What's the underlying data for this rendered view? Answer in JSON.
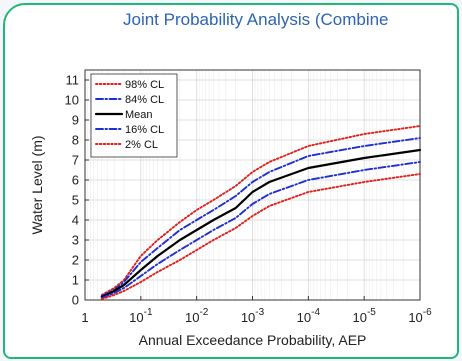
{
  "chart_data": {
    "type": "line",
    "title": "Joint Probability Analysis (Combine",
    "xlabel": "Annual Exceedance Probability, AEP",
    "ylabel": "Water Level (m)",
    "x_scale": "log",
    "x_reversed": true,
    "xlim": [
      1,
      1e-06
    ],
    "ylim": [
      0,
      11.5
    ],
    "x_ticks": [
      {
        "base": "1",
        "exp": ""
      },
      {
        "base": "10",
        "exp": "-1"
      },
      {
        "base": "10",
        "exp": "-2"
      },
      {
        "base": "10",
        "exp": "-3"
      },
      {
        "base": "10",
        "exp": "-4"
      },
      {
        "base": "10",
        "exp": "-5"
      },
      {
        "base": "10",
        "exp": "-6"
      }
    ],
    "y_ticks": [
      "0",
      "1",
      "2",
      "3",
      "4",
      "5",
      "6",
      "7",
      "8",
      "9",
      "10",
      "11"
    ],
    "grid": true,
    "legend_position": "top-left",
    "series": [
      {
        "name": "98% CL",
        "color": "#e0201b",
        "style": "dotted",
        "x": [
          0.5,
          0.3,
          0.2,
          0.1,
          0.05,
          0.02,
          0.01,
          0.005,
          0.002,
          0.001,
          0.0005,
          0.0001,
          1e-05,
          1e-06
        ],
        "y": [
          0.25,
          0.6,
          1.0,
          2.2,
          3.0,
          3.9,
          4.5,
          5.0,
          5.7,
          6.4,
          6.9,
          7.7,
          8.3,
          8.7
        ]
      },
      {
        "name": "84% CL",
        "color": "#1f2fd0",
        "style": "dash-dot",
        "x": [
          0.5,
          0.3,
          0.2,
          0.1,
          0.05,
          0.02,
          0.01,
          0.005,
          0.002,
          0.001,
          0.0005,
          0.0001,
          1e-05,
          1e-06
        ],
        "y": [
          0.2,
          0.5,
          0.9,
          1.9,
          2.6,
          3.5,
          4.0,
          4.5,
          5.2,
          5.9,
          6.4,
          7.2,
          7.7,
          8.1
        ]
      },
      {
        "name": "Mean",
        "color": "#000000",
        "style": "solid",
        "x": [
          0.5,
          0.3,
          0.2,
          0.1,
          0.05,
          0.02,
          0.01,
          0.005,
          0.002,
          0.001,
          0.0005,
          0.0001,
          1e-05,
          1e-06
        ],
        "y": [
          0.15,
          0.45,
          0.75,
          1.5,
          2.2,
          3.0,
          3.5,
          4.0,
          4.6,
          5.4,
          5.9,
          6.6,
          7.1,
          7.5
        ]
      },
      {
        "name": "16% CL",
        "color": "#1f2fd0",
        "style": "dash-dot",
        "x": [
          0.5,
          0.3,
          0.2,
          0.1,
          0.05,
          0.02,
          0.01,
          0.005,
          0.002,
          0.001,
          0.0005,
          0.0001,
          1e-05,
          1e-06
        ],
        "y": [
          0.1,
          0.35,
          0.6,
          1.2,
          1.8,
          2.5,
          3.0,
          3.5,
          4.1,
          4.8,
          5.3,
          6.0,
          6.5,
          6.9
        ]
      },
      {
        "name": "2% CL",
        "color": "#e0201b",
        "style": "dotted",
        "x": [
          0.5,
          0.3,
          0.2,
          0.1,
          0.05,
          0.02,
          0.01,
          0.005,
          0.002,
          0.001,
          0.0005,
          0.0001,
          1e-05,
          1e-06
        ],
        "y": [
          0.05,
          0.25,
          0.45,
          0.9,
          1.4,
          2.0,
          2.5,
          3.0,
          3.6,
          4.2,
          4.7,
          5.4,
          5.9,
          6.3
        ]
      }
    ]
  }
}
